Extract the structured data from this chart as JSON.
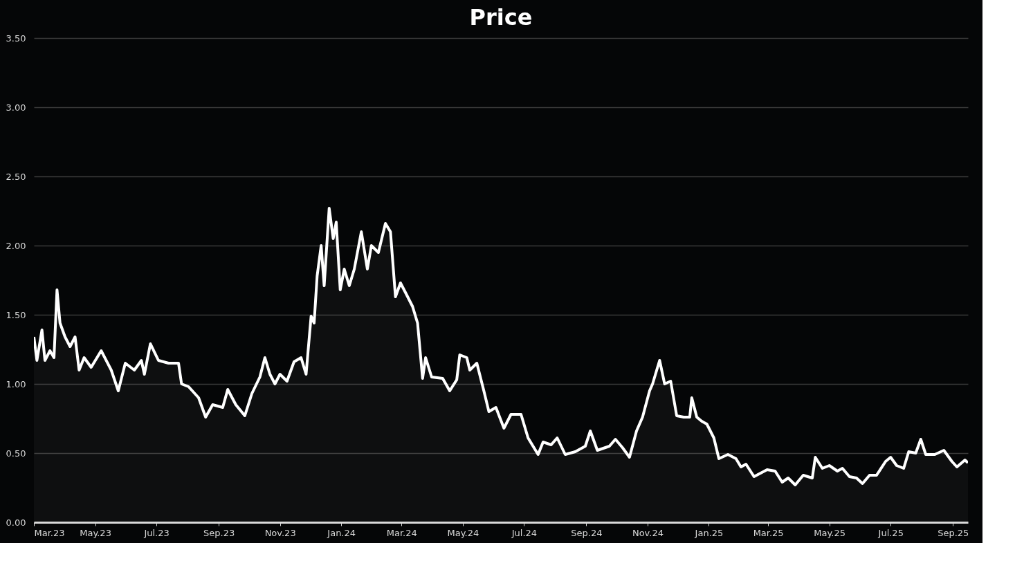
{
  "chart_data": {
    "type": "area",
    "title": "Price",
    "x": [
      "2023-03-01",
      "2023-03-04",
      "2023-03-09",
      "2023-03-12",
      "2023-03-17",
      "2023-03-21",
      "2023-03-24",
      "2023-03-27",
      "2023-04-01",
      "2023-04-06",
      "2023-04-11",
      "2023-04-15",
      "2023-04-20",
      "2023-04-27",
      "2023-05-07",
      "2023-05-17",
      "2023-05-24",
      "2023-05-31",
      "2023-06-09",
      "2023-06-16",
      "2023-06-19",
      "2023-06-25",
      "2023-07-03",
      "2023-07-13",
      "2023-07-23",
      "2023-07-26",
      "2023-08-02",
      "2023-08-12",
      "2023-08-19",
      "2023-08-26",
      "2023-09-05",
      "2023-09-10",
      "2023-09-18",
      "2023-09-27",
      "2023-10-04",
      "2023-10-12",
      "2023-10-17",
      "2023-10-22",
      "2023-10-27",
      "2023-11-01",
      "2023-11-08",
      "2023-11-15",
      "2023-11-22",
      "2023-11-27",
      "2023-12-02",
      "2023-12-05",
      "2023-12-08",
      "2023-12-12",
      "2023-12-15",
      "2023-12-20",
      "2023-12-24",
      "2023-12-27",
      "2023-12-31",
      "2024-01-04",
      "2024-01-09",
      "2024-01-14",
      "2024-01-21",
      "2024-01-27",
      "2024-01-31",
      "2024-02-07",
      "2024-02-14",
      "2024-02-19",
      "2024-02-24",
      "2024-02-29",
      "2024-03-05",
      "2024-03-12",
      "2024-03-17",
      "2024-03-22",
      "2024-03-25",
      "2024-03-31",
      "2024-04-11",
      "2024-04-18",
      "2024-04-25",
      "2024-04-28",
      "2024-05-05",
      "2024-05-08",
      "2024-05-15",
      "2024-05-22",
      "2024-05-27",
      "2024-06-03",
      "2024-06-11",
      "2024-06-18",
      "2024-06-28",
      "2024-07-05",
      "2024-07-15",
      "2024-07-20",
      "2024-07-28",
      "2024-08-03",
      "2024-08-11",
      "2024-08-21",
      "2024-08-31",
      "2024-09-05",
      "2024-09-12",
      "2024-09-24",
      "2024-09-30",
      "2024-10-07",
      "2024-10-14",
      "2024-10-21",
      "2024-10-27",
      "2024-11-03",
      "2024-11-06",
      "2024-11-13",
      "2024-11-18",
      "2024-11-24",
      "2024-11-30",
      "2024-12-07",
      "2024-12-13",
      "2024-12-15",
      "2024-12-20",
      "2024-12-25",
      "2024-12-30",
      "2025-01-06",
      "2025-01-11",
      "2025-01-20",
      "2025-01-28",
      "2025-02-02",
      "2025-02-07",
      "2025-02-15",
      "2025-02-28",
      "2025-03-08",
      "2025-03-15",
      "2025-03-21",
      "2025-03-28",
      "2025-04-05",
      "2025-04-14",
      "2025-04-17",
      "2025-04-24",
      "2025-05-01",
      "2025-05-09",
      "2025-05-14",
      "2025-05-21",
      "2025-05-28",
      "2025-06-03",
      "2025-06-10",
      "2025-06-17",
      "2025-06-26",
      "2025-07-01",
      "2025-07-07",
      "2025-07-14",
      "2025-07-19",
      "2025-07-26",
      "2025-07-31",
      "2025-08-05",
      "2025-08-14",
      "2025-08-23",
      "2025-08-31",
      "2025-09-05",
      "2025-09-13",
      "2025-09-16"
    ],
    "series": [
      {
        "color": "#ffffff",
        "values": [
          1.34,
          1.17,
          1.39,
          1.17,
          1.24,
          1.19,
          1.68,
          1.44,
          1.34,
          1.27,
          1.34,
          1.1,
          1.19,
          1.12,
          1.24,
          1.1,
          0.95,
          1.15,
          1.1,
          1.17,
          1.07,
          1.29,
          1.17,
          1.15,
          1.15,
          1.0,
          0.98,
          0.9,
          0.76,
          0.85,
          0.83,
          0.96,
          0.85,
          0.77,
          0.93,
          1.05,
          1.19,
          1.07,
          1.0,
          1.07,
          1.02,
          1.16,
          1.19,
          1.07,
          1.49,
          1.44,
          1.78,
          2.0,
          1.71,
          2.27,
          2.05,
          2.17,
          1.68,
          1.83,
          1.71,
          1.83,
          2.1,
          1.83,
          2.0,
          1.95,
          2.16,
          2.1,
          1.63,
          1.73,
          1.66,
          1.56,
          1.44,
          1.04,
          1.19,
          1.05,
          1.04,
          0.95,
          1.03,
          1.21,
          1.19,
          1.1,
          1.15,
          0.95,
          0.8,
          0.83,
          0.68,
          0.78,
          0.78,
          0.61,
          0.49,
          0.58,
          0.56,
          0.61,
          0.49,
          0.51,
          0.55,
          0.66,
          0.52,
          0.55,
          0.6,
          0.54,
          0.47,
          0.66,
          0.76,
          0.95,
          1.0,
          1.17,
          1.0,
          1.02,
          0.77,
          0.76,
          0.76,
          0.9,
          0.76,
          0.73,
          0.71,
          0.61,
          0.46,
          0.49,
          0.46,
          0.4,
          0.42,
          0.33,
          0.38,
          0.37,
          0.29,
          0.32,
          0.27,
          0.34,
          0.32,
          0.47,
          0.39,
          0.41,
          0.37,
          0.39,
          0.33,
          0.32,
          0.28,
          0.34,
          0.34,
          0.44,
          0.47,
          0.41,
          0.39,
          0.51,
          0.5,
          0.6,
          0.49,
          0.49,
          0.52,
          0.44,
          0.4,
          0.45,
          0.43
        ]
      }
    ],
    "xlim": [
      "2023-03-01",
      "2025-09-16"
    ],
    "xticks": [
      {
        "value": "2023-03-01",
        "label": "Mar.23"
      },
      {
        "value": "2023-05-01",
        "label": "May.23"
      },
      {
        "value": "2023-07-01",
        "label": "Jul.23"
      },
      {
        "value": "2023-09-01",
        "label": "Sep.23"
      },
      {
        "value": "2023-11-01",
        "label": "Nov.23"
      },
      {
        "value": "2024-01-01",
        "label": "Jan.24"
      },
      {
        "value": "2024-03-01",
        "label": "Mar.24"
      },
      {
        "value": "2024-05-01",
        "label": "May.24"
      },
      {
        "value": "2024-07-01",
        "label": "Jul.24"
      },
      {
        "value": "2024-09-01",
        "label": "Sep.24"
      },
      {
        "value": "2024-11-01",
        "label": "Nov.24"
      },
      {
        "value": "2025-01-01",
        "label": "Jan.25"
      },
      {
        "value": "2025-03-01",
        "label": "Mar.25"
      },
      {
        "value": "2025-05-01",
        "label": "May.25"
      },
      {
        "value": "2025-07-01",
        "label": "Jul.25"
      },
      {
        "value": "2025-09-01",
        "label": "Sep.25"
      }
    ],
    "ylim": [
      0,
      3.5
    ],
    "yticks": [
      {
        "value": 0,
        "label": "0.00"
      },
      {
        "value": 0.5,
        "label": "0.50"
      },
      {
        "value": 1,
        "label": "1.00"
      },
      {
        "value": 1.5,
        "label": "1.50"
      },
      {
        "value": 2,
        "label": "2.00"
      },
      {
        "value": 2.5,
        "label": "2.50"
      },
      {
        "value": 3,
        "label": "3.00"
      },
      {
        "value": 3.5,
        "label": "3.50"
      }
    ],
    "grid": "y"
  }
}
